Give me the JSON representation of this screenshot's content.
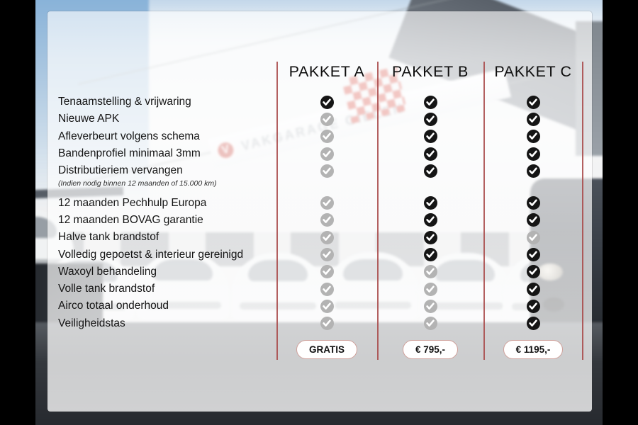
{
  "chart_data": {
    "type": "table",
    "columns": [
      "PAKKET A",
      "PAKKET B",
      "PAKKET C"
    ],
    "rows": [
      {
        "label": "Tenaamstelling & vrijwaring",
        "included": [
          true,
          true,
          true
        ]
      },
      {
        "label": "Nieuwe APK",
        "included": [
          false,
          true,
          true
        ]
      },
      {
        "label": "Afleverbeurt volgens schema",
        "included": [
          false,
          true,
          true
        ]
      },
      {
        "label": "Bandenprofiel minimaal 3mm",
        "included": [
          false,
          true,
          true
        ]
      },
      {
        "label": "Distributieriem vervangen",
        "note": "(Indien nodig binnen 12 maanden of 15.000 km)",
        "gap_after": true,
        "included": [
          false,
          true,
          true
        ]
      },
      {
        "label": "12 maanden Pechhulp Europa",
        "included": [
          false,
          true,
          true
        ]
      },
      {
        "label": "12 maanden BOVAG garantie",
        "included": [
          false,
          true,
          true
        ]
      },
      {
        "label": "Halve tank brandstof",
        "included": [
          false,
          true,
          false
        ]
      },
      {
        "label": "Volledig gepoetst & interieur gereinigd",
        "included": [
          false,
          true,
          true
        ]
      },
      {
        "label": "Waxoyl behandeling",
        "included": [
          false,
          false,
          true
        ]
      },
      {
        "label": "Volle tank brandstof",
        "included": [
          false,
          false,
          true
        ]
      },
      {
        "label": "Airco totaal onderhoud",
        "included": [
          false,
          false,
          true
        ]
      },
      {
        "label": "Veiligheidstas",
        "included": [
          false,
          false,
          true
        ]
      }
    ],
    "prices": [
      "GRATIS",
      "€ 795,-",
      "€ 1195,-"
    ],
    "legend_position": "none",
    "grid": false
  },
  "background": {
    "sign_text": "VAKGARAGE GIELEN",
    "logo_letter": "V"
  },
  "colors": {
    "divider": "#a84a4a",
    "pill_border": "#cfa09a",
    "check_included": "#151515",
    "check_excluded": "#b3b3b3"
  }
}
